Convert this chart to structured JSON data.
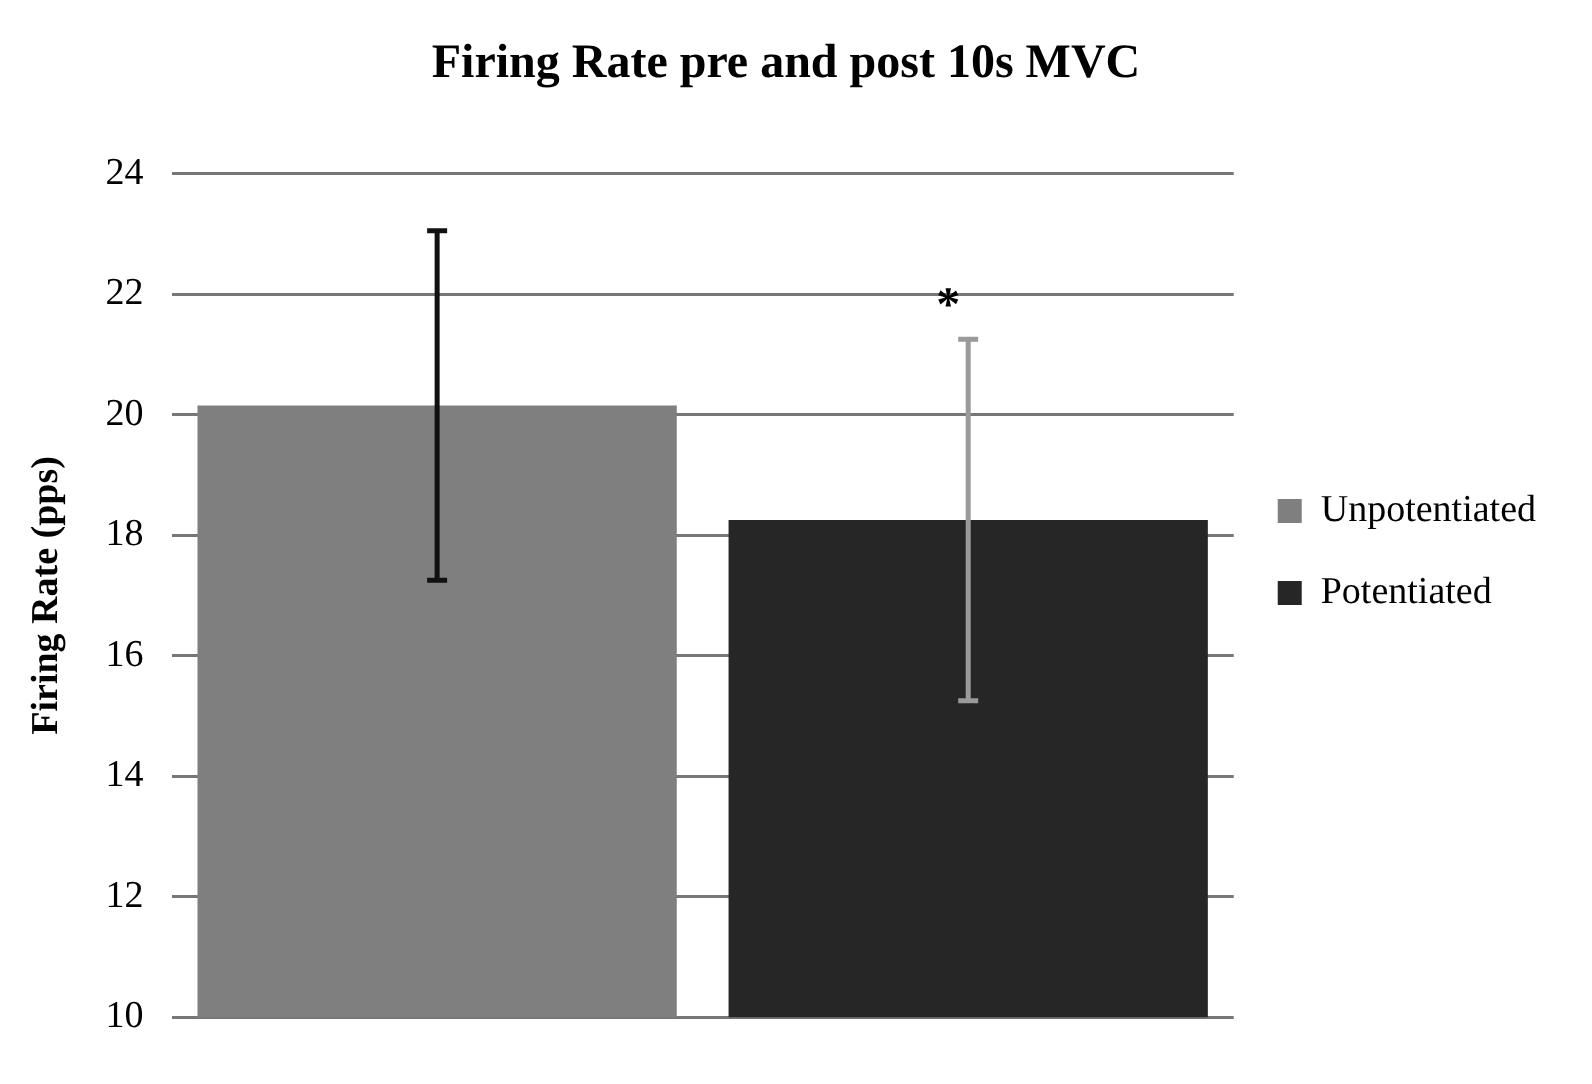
{
  "chart_data": {
    "type": "bar",
    "title": "Firing Rate pre and post 10s MVC",
    "ylabel": "Firing Rate (pps)",
    "categories": [
      null,
      null
    ],
    "series": [
      {
        "name": "Unpotentiated",
        "color": "#7f7f7f",
        "values": [
          20.15,
          null
        ],
        "errors": [
          2.9,
          null
        ]
      },
      {
        "name": "Potentiated",
        "color": "#262626",
        "values": [
          null,
          18.25
        ],
        "errors": [
          null,
          3.0
        ]
      }
    ],
    "ylim": [
      10,
      24
    ],
    "yticks": [
      10,
      12,
      14,
      16,
      18,
      20,
      22,
      24
    ],
    "grid": "y",
    "legend": "right",
    "annotations": [
      "*"
    ]
  }
}
